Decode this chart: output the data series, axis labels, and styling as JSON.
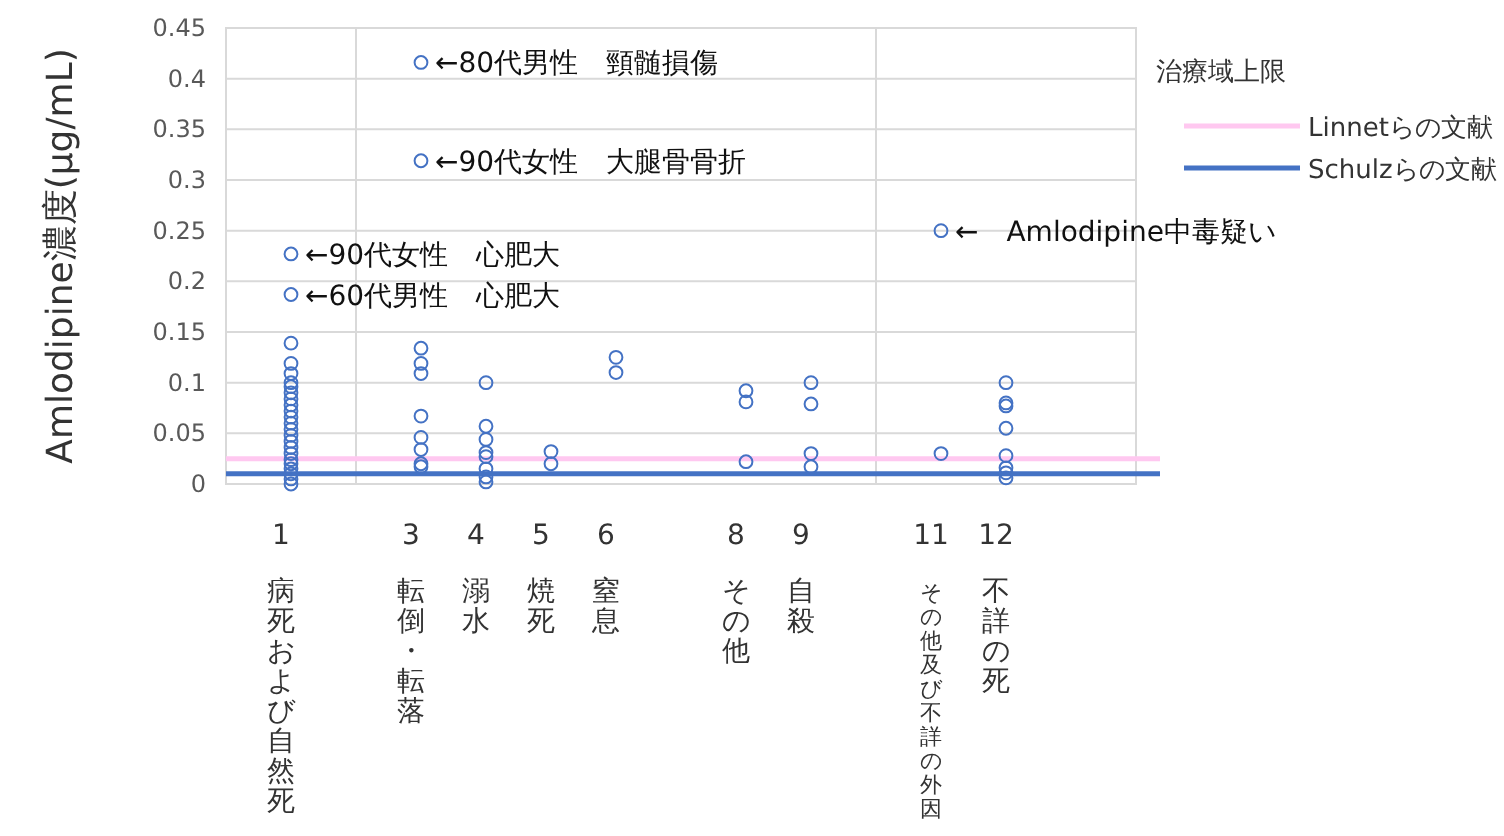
{
  "chart_data": {
    "type": "scatter",
    "ylabel": "Amlodipine濃度(μg/mL)",
    "legend_title": "治療域上限",
    "legend": "right",
    "marker": "circle",
    "grid": true,
    "xlim": [
      0,
      14
    ],
    "ylim": [
      0,
      0.45
    ],
    "yticks": [
      0,
      0.05,
      0.1,
      0.15,
      0.2,
      0.25,
      0.3,
      0.35,
      0.4,
      0.45
    ],
    "xticks": [
      {
        "value": 1,
        "label": "1"
      },
      {
        "value": 2,
        "label": null
      },
      {
        "value": 3,
        "label": "3"
      },
      {
        "value": 4,
        "label": "4"
      },
      {
        "value": 5,
        "label": "5"
      },
      {
        "value": 6,
        "label": "6"
      },
      {
        "value": 8,
        "label": "8"
      },
      {
        "value": 9,
        "label": "9"
      },
      {
        "value": 10,
        "label": null
      },
      {
        "value": 11,
        "label": "11"
      },
      {
        "value": 12,
        "label": "12"
      }
    ],
    "series": [
      {
        "color": "#4472c4",
        "x": [
          1,
          1,
          1,
          1,
          1,
          1,
          1,
          1,
          1,
          1,
          1,
          1,
          1,
          1,
          1,
          1,
          1,
          1,
          1,
          1,
          1,
          1,
          1,
          1,
          3,
          3,
          3,
          3,
          3,
          3,
          3,
          3,
          3,
          3,
          4,
          4,
          4,
          4,
          4,
          4,
          4,
          4,
          5,
          5,
          6,
          6,
          8,
          8,
          8,
          9,
          9,
          9,
          9,
          11,
          11,
          12,
          12,
          12,
          12,
          12,
          12,
          12,
          12
        ],
        "values": [
          0.227,
          0.187,
          0.139,
          0.119,
          0.109,
          0.1,
          0.096,
          0.09,
          0.084,
          0.078,
          0.072,
          0.066,
          0.06,
          0.054,
          0.048,
          0.042,
          0.036,
          0.03,
          0.024,
          0.02,
          0.015,
          0.01,
          0.005,
          0,
          0.416,
          0.319,
          0.134,
          0.119,
          0.109,
          0.067,
          0.046,
          0.034,
          0.02,
          0.017,
          0.1,
          0.057,
          0.044,
          0.031,
          0.027,
          0.015,
          0.007,
          0.002,
          0.032,
          0.02,
          0.125,
          0.11,
          0.092,
          0.081,
          0.022,
          0.1,
          0.079,
          0.03,
          0.017,
          0.25,
          0.03,
          0.1,
          0.08,
          0.077,
          0.055,
          0.028,
          0.016,
          0.011,
          0.006
        ]
      }
    ],
    "ref_lines": [
      {
        "axis": "y",
        "value": 0.025,
        "label": "Linnetらの文献",
        "color": "#ffc8f0"
      },
      {
        "axis": "y",
        "value": 0.01,
        "label": "Schulzらの文献",
        "color": "#4472c4"
      }
    ],
    "annotations": [
      {
        "text": "←80代男性　頸髄損傷",
        "x": 3,
        "y": 0.416
      },
      {
        "text": "←90代女性　大腿骨骨折",
        "x": 3,
        "y": 0.319
      },
      {
        "text": "←90代女性　心肥大",
        "x": 1,
        "y": 0.227
      },
      {
        "text": "←60代男性　心肥大",
        "x": 1,
        "y": 0.187
      },
      {
        "text": "←　Amlodipine中毒疑い",
        "x": 11,
        "y": 0.25
      },
      "病死および自然死",
      "転倒・転落",
      "溺水",
      "焼死",
      "窒息",
      "その他",
      "自殺",
      "その他及び不詳の外因",
      "不詳の死"
    ]
  }
}
